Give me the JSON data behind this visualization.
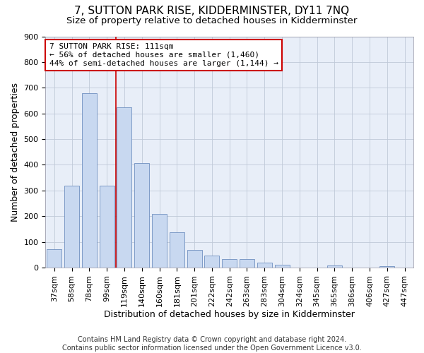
{
  "title": "7, SUTTON PARK RISE, KIDDERMINSTER, DY11 7NQ",
  "subtitle": "Size of property relative to detached houses in Kidderminster",
  "xlabel": "Distribution of detached houses by size in Kidderminster",
  "ylabel": "Number of detached properties",
  "categories": [
    "37sqm",
    "58sqm",
    "78sqm",
    "99sqm",
    "119sqm",
    "140sqm",
    "160sqm",
    "181sqm",
    "201sqm",
    "222sqm",
    "242sqm",
    "263sqm",
    "283sqm",
    "304sqm",
    "324sqm",
    "345sqm",
    "365sqm",
    "386sqm",
    "406sqm",
    "427sqm",
    "447sqm"
  ],
  "values": [
    72,
    318,
    680,
    320,
    625,
    408,
    210,
    137,
    70,
    48,
    33,
    33,
    20,
    10,
    0,
    0,
    8,
    0,
    0,
    7,
    0
  ],
  "bar_color": "#c8d8f0",
  "bar_edge_color": "#7090c0",
  "vline_color": "#cc0000",
  "vline_x_index": 4,
  "annotation_text": "7 SUTTON PARK RISE: 111sqm\n← 56% of detached houses are smaller (1,460)\n44% of semi-detached houses are larger (1,144) →",
  "annotation_box_facecolor": "#ffffff",
  "annotation_box_edgecolor": "#cc0000",
  "bg_color": "#e8eef8",
  "ylim": [
    0,
    900
  ],
  "yticks": [
    0,
    100,
    200,
    300,
    400,
    500,
    600,
    700,
    800,
    900
  ],
  "grid_color": "#c0cad8",
  "title_fontsize": 11,
  "subtitle_fontsize": 9.5,
  "xlabel_fontsize": 9,
  "ylabel_fontsize": 9,
  "tick_fontsize": 8,
  "annotation_fontsize": 8,
  "footer_fontsize": 7,
  "footer": "Contains HM Land Registry data © Crown copyright and database right 2024.\nContains public sector information licensed under the Open Government Licence v3.0."
}
